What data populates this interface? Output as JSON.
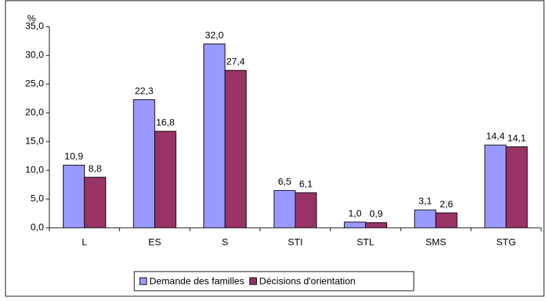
{
  "chart_data": {
    "type": "bar",
    "y_unit": "%",
    "categories": [
      "L",
      "ES",
      "S",
      "STI",
      "STL",
      "SMS",
      "STG"
    ],
    "series": [
      {
        "name": "Demande des familles",
        "color": "#9999ff",
        "values": [
          10.9,
          22.3,
          32.0,
          6.5,
          1.0,
          3.1,
          14.4
        ],
        "value_labels": [
          "10,9",
          "22,3",
          "32,0",
          "6,5",
          "1,0",
          "3,1",
          "14,4"
        ]
      },
      {
        "name": "Décisions d'orientation",
        "color": "#993366",
        "values": [
          8.8,
          16.8,
          27.4,
          6.1,
          0.9,
          2.6,
          14.1
        ],
        "value_labels": [
          "8,8",
          "16,8",
          "27,4",
          "6,1",
          "0,9",
          "2,6",
          "14,1"
        ]
      }
    ],
    "ylim": [
      0,
      35
    ],
    "yticks": [
      {
        "value": 0,
        "label": "0,0"
      },
      {
        "value": 5,
        "label": "5,0"
      },
      {
        "value": 10,
        "label": "10,0"
      },
      {
        "value": 15,
        "label": "15,0"
      },
      {
        "value": 20,
        "label": "20,0"
      },
      {
        "value": 25,
        "label": "25,0"
      },
      {
        "value": 30,
        "label": "30,0"
      },
      {
        "value": 35,
        "label": "35,0"
      }
    ],
    "legend": "bottom"
  }
}
